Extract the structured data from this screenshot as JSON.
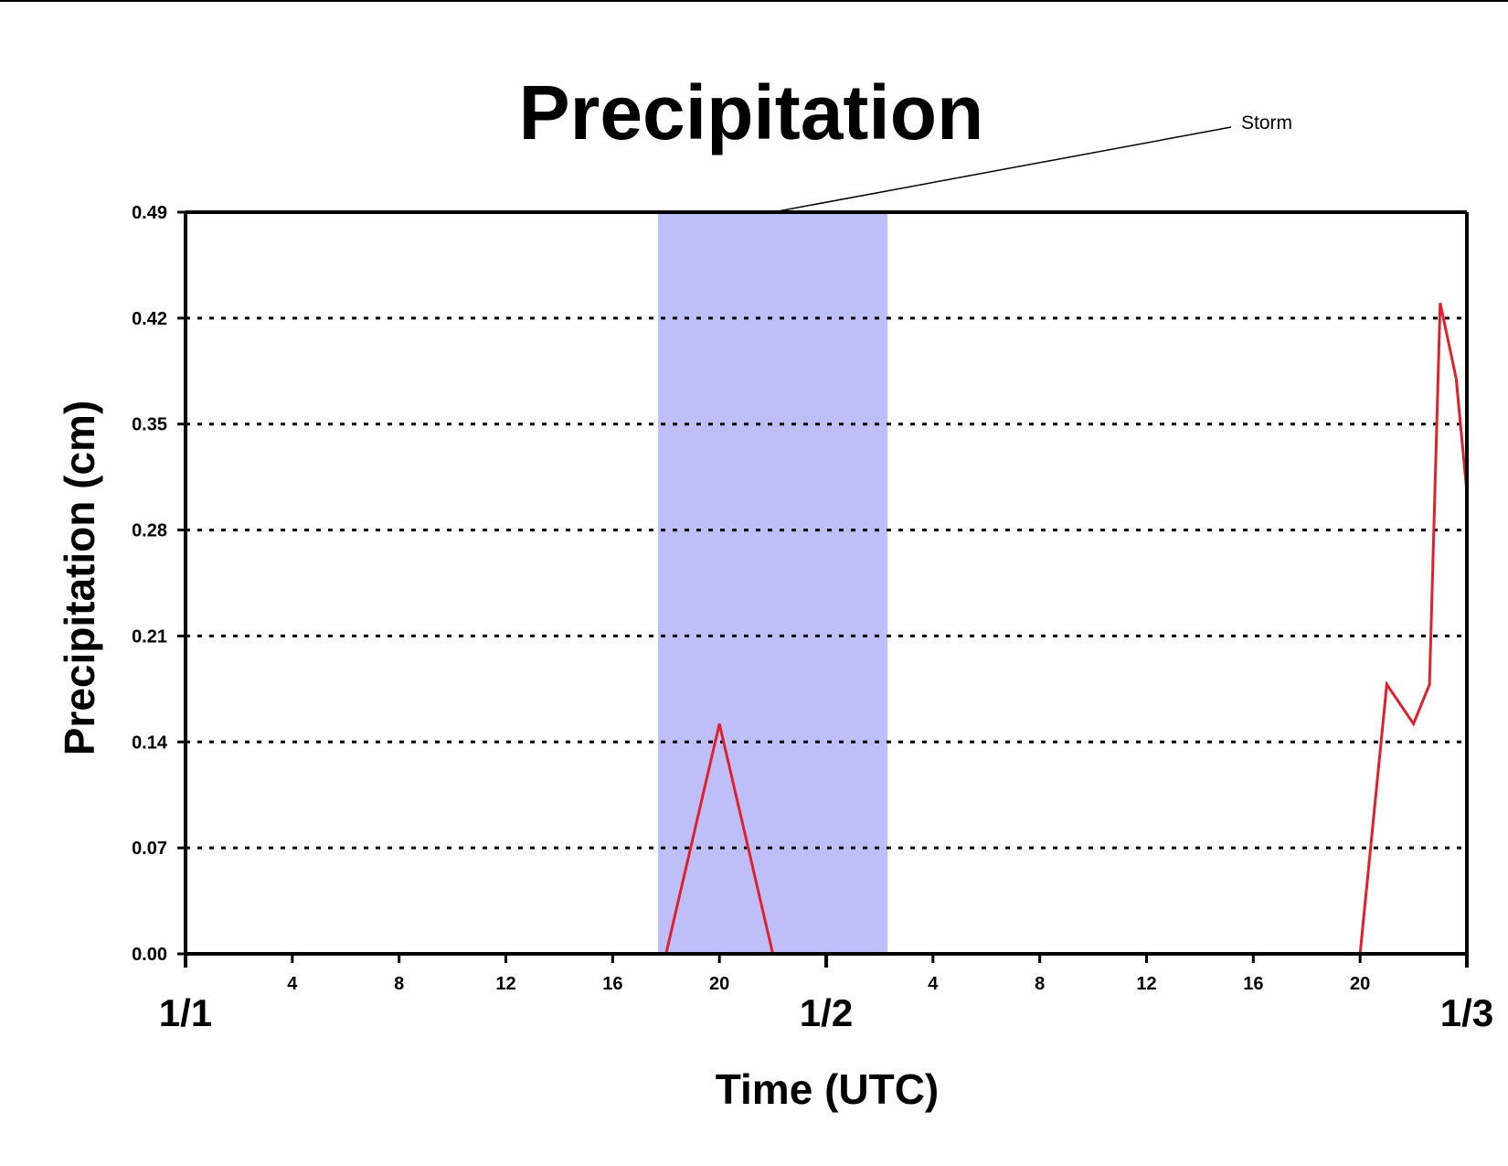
{
  "colors": {
    "line": "#e0202c",
    "storm_band": "#bebef8",
    "axis": "#000000",
    "grid": "#000000"
  },
  "chart_data": {
    "type": "line",
    "title": "Precipitation",
    "xlabel": "Time (UTC)",
    "ylabel": "Precipitation (cm)",
    "x_unit": "hours since 1/1 00 UTC",
    "xlim": [
      0,
      48
    ],
    "ylim": [
      0,
      0.49
    ],
    "y_ticks": [
      "0.00",
      "0.07",
      "0.14",
      "0.21",
      "0.28",
      "0.35",
      "0.42",
      "0.49"
    ],
    "x_minor_ticks": [
      {
        "x": 4,
        "label": "4"
      },
      {
        "x": 8,
        "label": "8"
      },
      {
        "x": 12,
        "label": "12"
      },
      {
        "x": 16,
        "label": "16"
      },
      {
        "x": 20,
        "label": "20"
      },
      {
        "x": 28,
        "label": "4"
      },
      {
        "x": 32,
        "label": "8"
      },
      {
        "x": 36,
        "label": "12"
      },
      {
        "x": 40,
        "label": "16"
      },
      {
        "x": 44,
        "label": "20"
      }
    ],
    "x_major_ticks": [
      {
        "x": 0,
        "label": "1/1"
      },
      {
        "x": 24,
        "label": "1/2"
      },
      {
        "x": 48,
        "label": "1/3"
      }
    ],
    "grid": "horizontal dotted",
    "shaded_region": {
      "label": "Storm",
      "x_start": 17.7,
      "x_end": 26.3
    },
    "annotation": {
      "text": "Storm"
    },
    "series": [
      {
        "x": [
          0,
          18,
          20,
          22,
          44,
          45,
          46,
          46.6,
          47,
          47.6,
          48,
          48,
          48
        ],
        "y": [
          0,
          0,
          0.152,
          0,
          0,
          0.178,
          0.152,
          0.178,
          0.43,
          0.38,
          0.305,
          0.12,
          0
        ]
      }
    ]
  }
}
